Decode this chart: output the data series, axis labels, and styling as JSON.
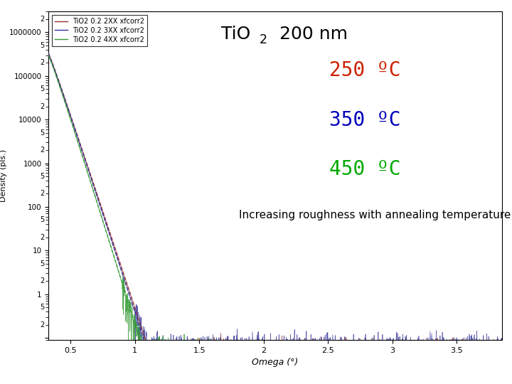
{
  "title_text": "TiO",
  "title_sub": "2",
  "title_rest": "  200 nm",
  "xlabel": "Omega (°)",
  "ylabel": "Density (pls.)",
  "xlim": [
    0.33,
    3.85
  ],
  "ylim": [
    0.09,
    3000000
  ],
  "legend_labels": [
    "TiO2 0.2 2XX xfcorr2",
    "TiO2 0.2 3XX xfcorr2",
    "TiO2 0.2 4XX xfcorr2"
  ],
  "temp_labels": [
    "250 ºC",
    "350 ºC",
    "450 ºC"
  ],
  "temp_colors": [
    "#cc2200",
    "#0000bb",
    "#00aa00"
  ],
  "line_colors": [
    "#993333",
    "#333399",
    "#339933"
  ],
  "bg_color": "#ffffff",
  "plot_bg": "#ffffff",
  "bottom_color": "#f4c88a",
  "annotation_fontsize": 11,
  "temp_fontsize": 20,
  "title_fontsize": 18,
  "legend_fontsize": 7
}
